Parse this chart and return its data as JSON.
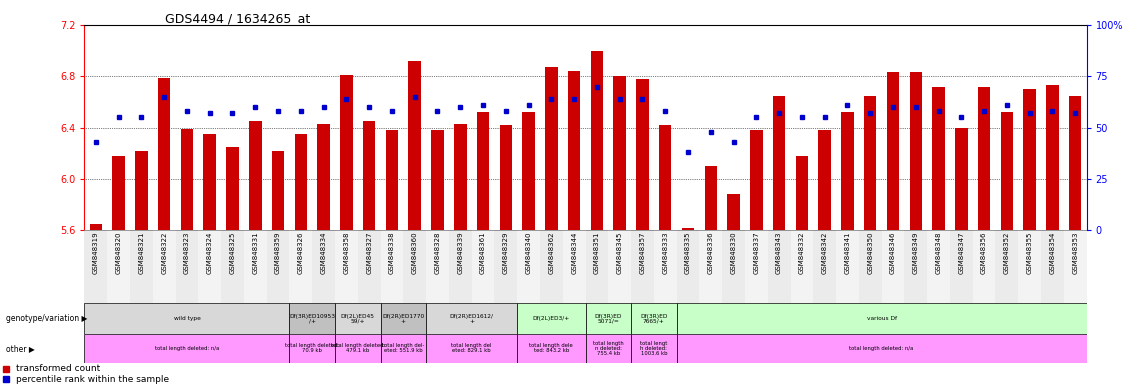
{
  "title": "GDS4494 / 1634265_at",
  "ylim_left": [
    5.6,
    7.2
  ],
  "ylim_right": [
    0,
    100
  ],
  "yticks_left": [
    5.6,
    6.0,
    6.4,
    6.8,
    7.2
  ],
  "yticks_right": [
    0,
    25,
    50,
    75,
    100
  ],
  "bar_color": "#CC0000",
  "dot_color": "#0000CC",
  "samples": [
    "GSM848319",
    "GSM848320",
    "GSM848321",
    "GSM848322",
    "GSM848323",
    "GSM848324",
    "GSM848325",
    "GSM848331",
    "GSM848359",
    "GSM848326",
    "GSM848334",
    "GSM848358",
    "GSM848327",
    "GSM848338",
    "GSM848360",
    "GSM848328",
    "GSM848339",
    "GSM848361",
    "GSM848329",
    "GSM848340",
    "GSM848362",
    "GSM848344",
    "GSM848351",
    "GSM848345",
    "GSM848357",
    "GSM848333",
    "GSM848335",
    "GSM848336",
    "GSM848330",
    "GSM848337",
    "GSM848343",
    "GSM848332",
    "GSM848342",
    "GSM848341",
    "GSM848350",
    "GSM848346",
    "GSM848349",
    "GSM848348",
    "GSM848347",
    "GSM848356",
    "GSM848352",
    "GSM848355",
    "GSM848354",
    "GSM848353"
  ],
  "red_values": [
    5.65,
    6.18,
    6.22,
    6.79,
    6.39,
    6.35,
    6.25,
    6.45,
    6.22,
    6.35,
    6.43,
    6.81,
    6.45,
    6.38,
    6.92,
    6.38,
    6.43,
    6.52,
    6.42,
    6.52,
    6.87,
    6.84,
    7.0,
    6.8,
    6.78,
    6.42,
    5.62,
    6.1,
    5.88,
    6.38,
    6.65,
    6.18,
    6.38,
    6.52,
    6.65,
    6.83,
    6.83,
    6.72,
    6.4,
    6.72,
    6.52,
    6.7,
    6.73,
    6.65
  ],
  "blue_values": [
    43,
    55,
    55,
    65,
    58,
    57,
    57,
    60,
    58,
    58,
    60,
    64,
    60,
    58,
    65,
    58,
    60,
    61,
    58,
    61,
    64,
    64,
    70,
    64,
    64,
    58,
    38,
    48,
    43,
    55,
    57,
    55,
    55,
    61,
    57,
    60,
    60,
    58,
    55,
    58,
    61,
    57,
    58,
    57
  ],
  "genotype_groups": [
    {
      "label": "wild type",
      "start": 0,
      "end": 9,
      "bg": "#d8d8d8"
    },
    {
      "label": "Df(3R)ED10953\n/+",
      "start": 9,
      "end": 11,
      "bg": "#c0c0c0"
    },
    {
      "label": "Df(2L)ED45\n59/+",
      "start": 11,
      "end": 13,
      "bg": "#d8d8d8"
    },
    {
      "label": "Df(2R)ED1770\n+",
      "start": 13,
      "end": 15,
      "bg": "#c0c0c0"
    },
    {
      "label": "Df(2R)ED1612/\n+",
      "start": 15,
      "end": 19,
      "bg": "#d8d8d8"
    },
    {
      "label": "Df(2L)ED3/+",
      "start": 19,
      "end": 22,
      "bg": "#c8ffc8"
    },
    {
      "label": "Df(3R)ED\n5071/=",
      "start": 22,
      "end": 24,
      "bg": "#c8ffc8"
    },
    {
      "label": "Df(3R)ED\n7665/+",
      "start": 24,
      "end": 26,
      "bg": "#c8ffc8"
    },
    {
      "label": "various Df",
      "start": 26,
      "end": 44,
      "bg": "#c8ffc8"
    }
  ],
  "other_groups": [
    {
      "label": "total length deleted: n/a",
      "start": 0,
      "end": 9
    },
    {
      "label": "total length deleted:\n70.9 kb",
      "start": 9,
      "end": 11
    },
    {
      "label": "total length deleted:\n479.1 kb",
      "start": 11,
      "end": 13
    },
    {
      "label": "total length del-\neted: 551.9 kb",
      "start": 13,
      "end": 15
    },
    {
      "label": "total length del\neted: 829.1 kb",
      "start": 15,
      "end": 19
    },
    {
      "label": "total length dele\nted: 843.2 kb",
      "start": 19,
      "end": 22
    },
    {
      "label": "total length\nn deleted:\n755.4 kb",
      "start": 22,
      "end": 24
    },
    {
      "label": "total lengt\nh deleted:\n1003.6 kb",
      "start": 24,
      "end": 26
    },
    {
      "label": "total length deleted: n/a",
      "start": 26,
      "end": 44
    }
  ],
  "fig_width": 11.26,
  "fig_height": 3.84,
  "fig_dpi": 100
}
